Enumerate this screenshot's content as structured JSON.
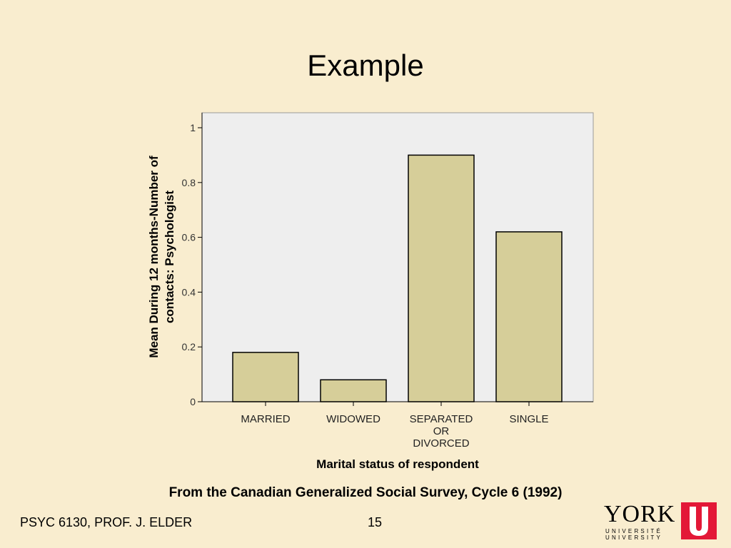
{
  "slide": {
    "title": "Example",
    "caption": "From the Canadian Generalized Social Survey, Cycle 6 (1992)",
    "footer_left": "PSYC 6130, PROF. J. ELDER",
    "page_number": "15",
    "logo": {
      "word": "YORK",
      "line1": "UNIVERSITÉ",
      "line2": "UNIVERSITY",
      "accent_color": "#E31837"
    }
  },
  "chart_data": {
    "type": "bar",
    "categories": [
      [
        "MARRIED"
      ],
      [
        "WIDOWED"
      ],
      [
        "SEPARATED",
        "OR",
        "DIVORCED"
      ],
      [
        "SINGLE"
      ]
    ],
    "values": [
      0.18,
      0.08,
      0.9,
      0.62
    ],
    "title": "",
    "xlabel": "Marital status of respondent",
    "ylabel": [
      "Mean During 12 months-Number of",
      "contacts: Psychologist"
    ],
    "ylim": [
      0,
      1
    ],
    "yticks": [
      0,
      0.2,
      0.4,
      0.6,
      0.8,
      1
    ],
    "ytick_labels": [
      "0",
      "0.2",
      "0.4",
      "0.6",
      "0.8",
      "1"
    ],
    "grid": false,
    "colors": {
      "bar_fill": "#D6CE99",
      "bar_stroke": "#000000",
      "plot_background": "#EEEEEE"
    }
  }
}
